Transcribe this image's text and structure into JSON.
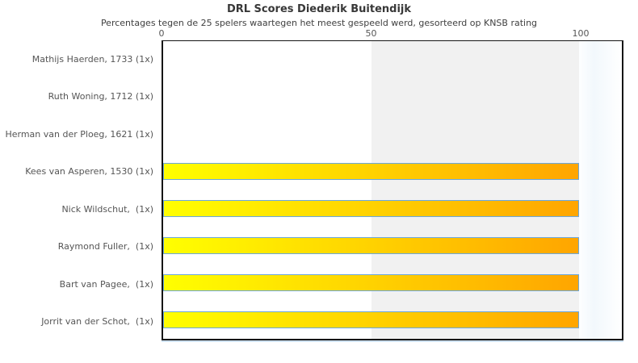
{
  "chart_data": {
    "type": "bar",
    "orientation": "horizontal",
    "title": "DRL Scores Diederik Buitendijk",
    "subtitle": "Percentages tegen de 25 spelers waartegen het meest gespeeld werd, gesorteerd op KNSB rating",
    "categories": [
      "Mathijs Haerden, 1733 (1x)",
      "Ruth Woning, 1712 (1x)",
      "Herman van der Ploeg, 1621 (1x)",
      "Kees van Asperen, 1530 (1x)",
      "Nick Wildschut,  (1x)",
      "Raymond Fuller,  (1x)",
      "Bart van Pagee,  (1x)",
      "Jorrit van der Schot,  (1x)"
    ],
    "values": [
      0,
      0,
      0,
      100,
      100,
      100,
      100,
      100
    ],
    "x_ticks": [
      0,
      50,
      100
    ],
    "xlim": [
      0,
      110.2
    ],
    "grid": false,
    "legend": false,
    "shaded_band": {
      "from": 50,
      "to": 100,
      "color": "#f1f1f1"
    },
    "bar_gradient": {
      "start": "#ffff00",
      "end": "#ffa500"
    },
    "bar_border_color": "#6ba7dc",
    "axis_color": "#151515",
    "text_color": "#555555"
  }
}
